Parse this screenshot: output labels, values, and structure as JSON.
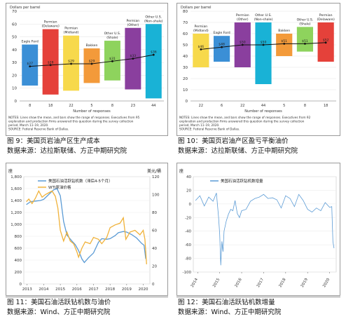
{
  "figures": [
    {
      "caption": "图 9：美国页岩油产区生产成本",
      "source": "数据来源：达拉斯联储、方正中期研究院"
    },
    {
      "caption": "图 10：美国页岩油产区盈亏平衡油价",
      "source": "数据来源：达拉斯联储、方正中期研究院"
    },
    {
      "caption": "图 11：美国石油活跃钻机数与油价",
      "source": "数据来源：Wind、方正中期研究院"
    },
    {
      "caption": "图 12：美国石油活跃钻机数增量",
      "source": "数据来源：Wind、方正中期研究院"
    }
  ],
  "chart_data": [
    {
      "type": "bar",
      "ylabel": "Dollars per barrel",
      "xlabel": "Number of responses",
      "ylim": [
        0,
        70
      ],
      "yticks": [
        0,
        10,
        20,
        30,
        40,
        50,
        60,
        70
      ],
      "categories": [
        "Eagle Ford",
        "Permian (Delaware)",
        "Permian (Midland)",
        "Bakken",
        "Other U.S. (Shale)",
        "Permian (Other)",
        "Other U.S. (Non-shale)"
      ],
      "responses": [
        "8",
        "18",
        "22",
        "5",
        "8",
        "23",
        "44"
      ],
      "ranges": [
        [
          12,
          44
        ],
        [
          5,
          56
        ],
        [
          8,
          51
        ],
        [
          14,
          41
        ],
        [
          16,
          47
        ],
        [
          9,
          57
        ],
        [
          2,
          60
        ]
      ],
      "means": [
        27,
        28,
        29,
        29,
        31,
        33,
        36
      ],
      "mean_labels": [
        "$27",
        "$28",
        "$29",
        "$29",
        "$31",
        "$33",
        "$36"
      ],
      "colors": [
        "#3b8fd6",
        "#e5413a",
        "#f7d94b",
        "#f39a3a",
        "#8ed35d",
        "#8a3f9e",
        "#19b2d6"
      ],
      "notes": "NOTES: Lines show the mean, and bars show the range of responses. Executives from 95 exploration and production firms answered this question during the survey collection period, March 11–19, 2020.",
      "source_note": "SOURCE: Federal Reserve Bank of Dallas."
    },
    {
      "type": "bar",
      "ylabel": "Dollars per barrel",
      "xlabel": "Number of responses",
      "ylim": [
        0,
        80
      ],
      "yticks": [
        0,
        10,
        20,
        30,
        40,
        50,
        60,
        70,
        80
      ],
      "categories": [
        "Permian (Midland)",
        "Eagle Ford",
        "Permian (Other)",
        "Other U.S. (Non-shale)",
        "Bakken",
        "Other U.S. (Shale)",
        "Permian (Delaware)"
      ],
      "responses": [
        "22",
        "6",
        "22",
        "44",
        "5",
        "8",
        "18"
      ],
      "ranges": [
        [
          30,
          60
        ],
        [
          35,
          58
        ],
        [
          30,
          70
        ],
        [
          15,
          70
        ],
        [
          40,
          60
        ],
        [
          44,
          66
        ],
        [
          35,
          70
        ]
      ],
      "means": [
        46,
        48,
        50,
        50,
        51,
        51,
        52
      ],
      "mean_labels": [
        "$46",
        "$48",
        "$50",
        "$50",
        "$51",
        "$51",
        "$52"
      ],
      "colors": [
        "#f7d94b",
        "#3b8fd6",
        "#8a3f9e",
        "#19b2d6",
        "#f39a3a",
        "#8ed35d",
        "#e5413a"
      ],
      "notes": "NOTES: Lines show the mean, and bars show the range of responses. Executives from 92 exploration and production firms answered this question during the survey collection period, March 11–19, 2020.",
      "source_note": "SOURCE: Federal Reserve Bank of Dallas."
    },
    {
      "type": "line",
      "ylabel_left": "座",
      "ylabel_right": "美元/桶",
      "ylim_left": [
        0,
        1800
      ],
      "yticks_left": [
        0,
        200,
        400,
        600,
        800,
        1000,
        1200,
        1400,
        1600,
        1800
      ],
      "ylim_right": [
        0,
        120
      ],
      "yticks_right": [
        0,
        20,
        40,
        60,
        80,
        100,
        120
      ],
      "xticks": [
        "2013",
        "2014",
        "2015",
        "2016",
        "2017",
        "2018",
        "2019",
        "2020"
      ],
      "series": [
        {
          "name": "美国石油活跃钻机数（滞后4-5个月）",
          "axis": "left",
          "color": "#5b9bd5",
          "x": [
            2012.95,
            2013.2,
            2013.5,
            2013.8,
            2014.0,
            2014.3,
            2014.6,
            2014.8,
            2015.0,
            2015.2,
            2015.4,
            2015.7,
            2015.9,
            2016.1,
            2016.3,
            2016.45,
            2016.7,
            2017.0,
            2017.3,
            2017.5,
            2017.8,
            2018.0,
            2018.3,
            2018.5,
            2018.8,
            2019.0,
            2019.3,
            2019.6,
            2019.9,
            2020.05,
            2020.15
          ],
          "y": [
            1330,
            1380,
            1390,
            1400,
            1420,
            1500,
            1580,
            1600,
            1480,
            1050,
            820,
            720,
            660,
            560,
            420,
            360,
            440,
            520,
            700,
            760,
            750,
            760,
            810,
            860,
            880,
            870,
            830,
            770,
            680,
            650,
            420
          ]
        },
        {
          "name": "WTI原油价格",
          "axis": "right",
          "color": "#f0b23a",
          "x": [
            2012.95,
            2013.1,
            2013.3,
            2013.5,
            2013.7,
            2013.9,
            2014.1,
            2014.3,
            2014.5,
            2014.7,
            2014.85,
            2015.0,
            2015.2,
            2015.4,
            2015.6,
            2015.8,
            2016.0,
            2016.1,
            2016.3,
            2016.5,
            2016.8,
            2017.0,
            2017.3,
            2017.5,
            2017.8,
            2018.0,
            2018.3,
            2018.6,
            2018.8,
            2018.95,
            2019.2,
            2019.5,
            2019.8,
            2020.0,
            2020.1,
            2020.2
          ],
          "y": [
            92,
            95,
            90,
            96,
            104,
            97,
            100,
            102,
            104,
            98,
            85,
            60,
            48,
            58,
            48,
            45,
            36,
            30,
            40,
            47,
            45,
            52,
            50,
            45,
            52,
            63,
            66,
            68,
            74,
            50,
            58,
            60,
            55,
            60,
            50,
            22
          ]
        }
      ]
    },
    {
      "type": "line",
      "ylabel": "座",
      "ylim": [
        -100,
        40
      ],
      "yticks": [
        -100,
        -80,
        -60,
        -40,
        -20,
        0,
        20,
        40
      ],
      "xticks": [
        "2014",
        "2015",
        "2016",
        "2017",
        "2018",
        "2019",
        "2020"
      ],
      "series": [
        {
          "name": "美国石油活跃钻机数增量",
          "color": "#5b9bd5",
          "x": [
            2013.9,
            2014.1,
            2014.3,
            2014.5,
            2014.7,
            2014.85,
            2014.95,
            2015.0,
            2015.05,
            2015.1,
            2015.15,
            2015.2,
            2015.3,
            2015.4,
            2015.5,
            2015.6,
            2015.7,
            2015.8,
            2015.9,
            2016.0,
            2016.2,
            2016.4,
            2016.6,
            2016.8,
            2017.0,
            2017.2,
            2017.4,
            2017.6,
            2017.8,
            2018.0,
            2018.2,
            2018.4,
            2018.6,
            2018.8,
            2019.0,
            2019.2,
            2019.4,
            2019.6,
            2019.8,
            2020.0,
            2020.1,
            2020.15,
            2020.2
          ],
          "y": [
            5,
            12,
            -3,
            10,
            4,
            16,
            -20,
            -45,
            -90,
            -55,
            -70,
            -40,
            -25,
            -15,
            -8,
            -10,
            5,
            -14,
            -20,
            -10,
            -8,
            4,
            8,
            10,
            14,
            8,
            9,
            6,
            -6,
            12,
            8,
            -4,
            14,
            5,
            -8,
            -12,
            -6,
            -10,
            2,
            -5,
            -4,
            -55,
            -65
          ]
        }
      ]
    }
  ]
}
